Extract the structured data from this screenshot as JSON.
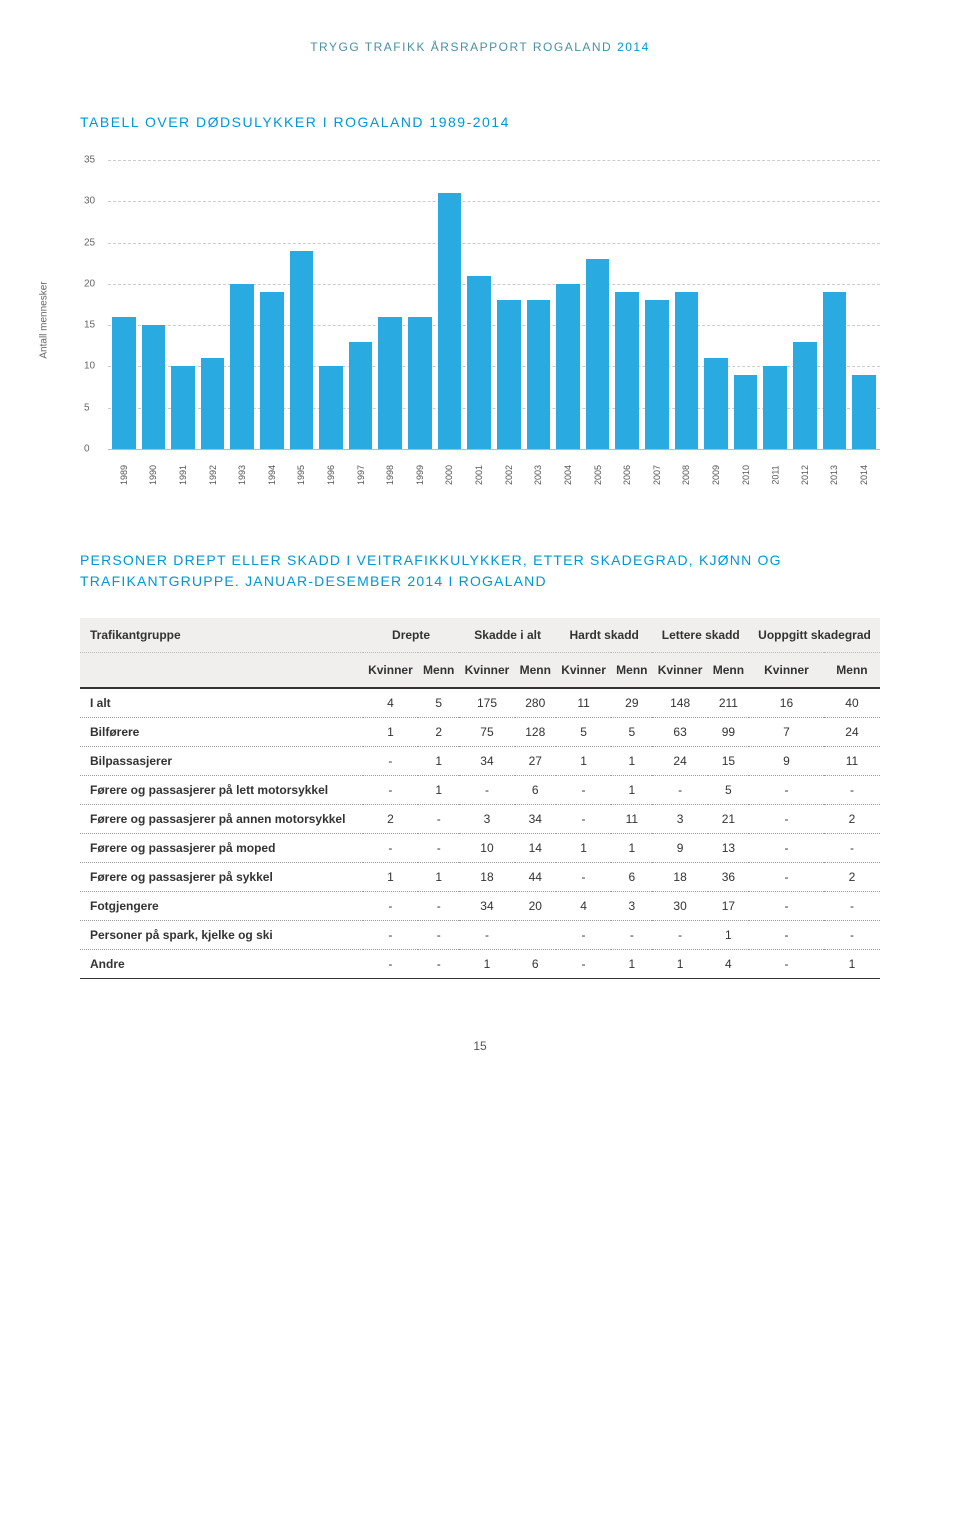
{
  "header": {
    "text_pre": "TRYGG TRAFIKK ÅRSRAPPORT ",
    "text_region": "ROGALAND ",
    "year": "2014"
  },
  "chart": {
    "title": "TABELL OVER DØDSULYKKER I ROGALAND 1989-2014",
    "type": "bar",
    "y_label": "Antall mennesker",
    "ylim": [
      0,
      35
    ],
    "ytick_step": 5,
    "bar_color": "#29abe2",
    "grid_color": "#cccccc",
    "background_color": "#ffffff",
    "title_color": "#0097d6",
    "title_fontsize": 14,
    "label_fontsize": 10,
    "categories": [
      "1989",
      "1990",
      "1991",
      "1992",
      "1993",
      "1994",
      "1995",
      "1996",
      "1997",
      "1998",
      "1999",
      "2000",
      "2001",
      "2002",
      "2003",
      "2004",
      "2005",
      "2006",
      "2007",
      "2008",
      "2009",
      "2010",
      "2011",
      "2012",
      "2013",
      "2014"
    ],
    "values": [
      16,
      15,
      10,
      11,
      20,
      19,
      24,
      10,
      13,
      16,
      16,
      31,
      21,
      18,
      18,
      20,
      23,
      19,
      18,
      19,
      11,
      9,
      10,
      13,
      19,
      9
    ]
  },
  "section2": {
    "title_line1": "PERSONER DREPT ELLER SKADD I VEITRAFIKKULYKKER, ETTER SKADEGRAD, KJØNN OG TRAFIKANTGRUPPE.",
    "title_line2": " JANUAR-DESEMBER 2014 I ROGALAND"
  },
  "table": {
    "col_group_headers": [
      "Trafikantgruppe",
      "Drepte",
      "Skadde i alt",
      "Hardt skadd",
      "Lettere skadd",
      "Uoppgitt skadegrad"
    ],
    "sub_headers": [
      "",
      "Kvinner",
      "Menn",
      "Kvinner",
      "Menn",
      "Kvinner",
      "Menn",
      "Kvinner",
      "Menn",
      "Kvinner",
      "Menn"
    ],
    "rows": [
      {
        "label": "I alt",
        "cells": [
          "4",
          "5",
          "175",
          "280",
          "11",
          "29",
          "148",
          "211",
          "16",
          "40"
        ]
      },
      {
        "label": "Bilførere",
        "cells": [
          "1",
          "2",
          "75",
          "128",
          "5",
          "5",
          "63",
          "99",
          "7",
          "24"
        ]
      },
      {
        "label": "Bilpassasjerer",
        "cells": [
          "-",
          "1",
          "34",
          "27",
          "1",
          "1",
          "24",
          "15",
          "9",
          "11"
        ]
      },
      {
        "label": "Førere og passasjerer på lett motorsykkel",
        "cells": [
          "-",
          "1",
          "-",
          "6",
          "-",
          "1",
          "-",
          "5",
          "-",
          "-"
        ]
      },
      {
        "label": "Førere og passasjerer på annen motorsykkel",
        "cells": [
          "2",
          "-",
          "3",
          "34",
          "-",
          "11",
          "3",
          "21",
          "-",
          "2"
        ]
      },
      {
        "label": "Førere og passasjerer på moped",
        "cells": [
          "-",
          "-",
          "10",
          "14",
          "1",
          "1",
          "9",
          "13",
          "-",
          "-"
        ]
      },
      {
        "label": "Førere og passasjerer på sykkel",
        "cells": [
          "1",
          "1",
          "18",
          "44",
          "-",
          "6",
          "18",
          "36",
          "-",
          "2"
        ]
      },
      {
        "label": "Fotgjengere",
        "cells": [
          "-",
          "-",
          "34",
          "20",
          "4",
          "3",
          "30",
          "17",
          "-",
          "-"
        ]
      },
      {
        "label": "Personer på spark, kjelke og ski",
        "cells": [
          "-",
          "-",
          "-",
          "",
          "-",
          "-",
          "-",
          "1",
          "-",
          "-"
        ]
      },
      {
        "label": "Andre",
        "cells": [
          "-",
          "-",
          "1",
          "6",
          "-",
          "1",
          "1",
          "4",
          "-",
          "1"
        ]
      }
    ]
  },
  "page_number": "15"
}
